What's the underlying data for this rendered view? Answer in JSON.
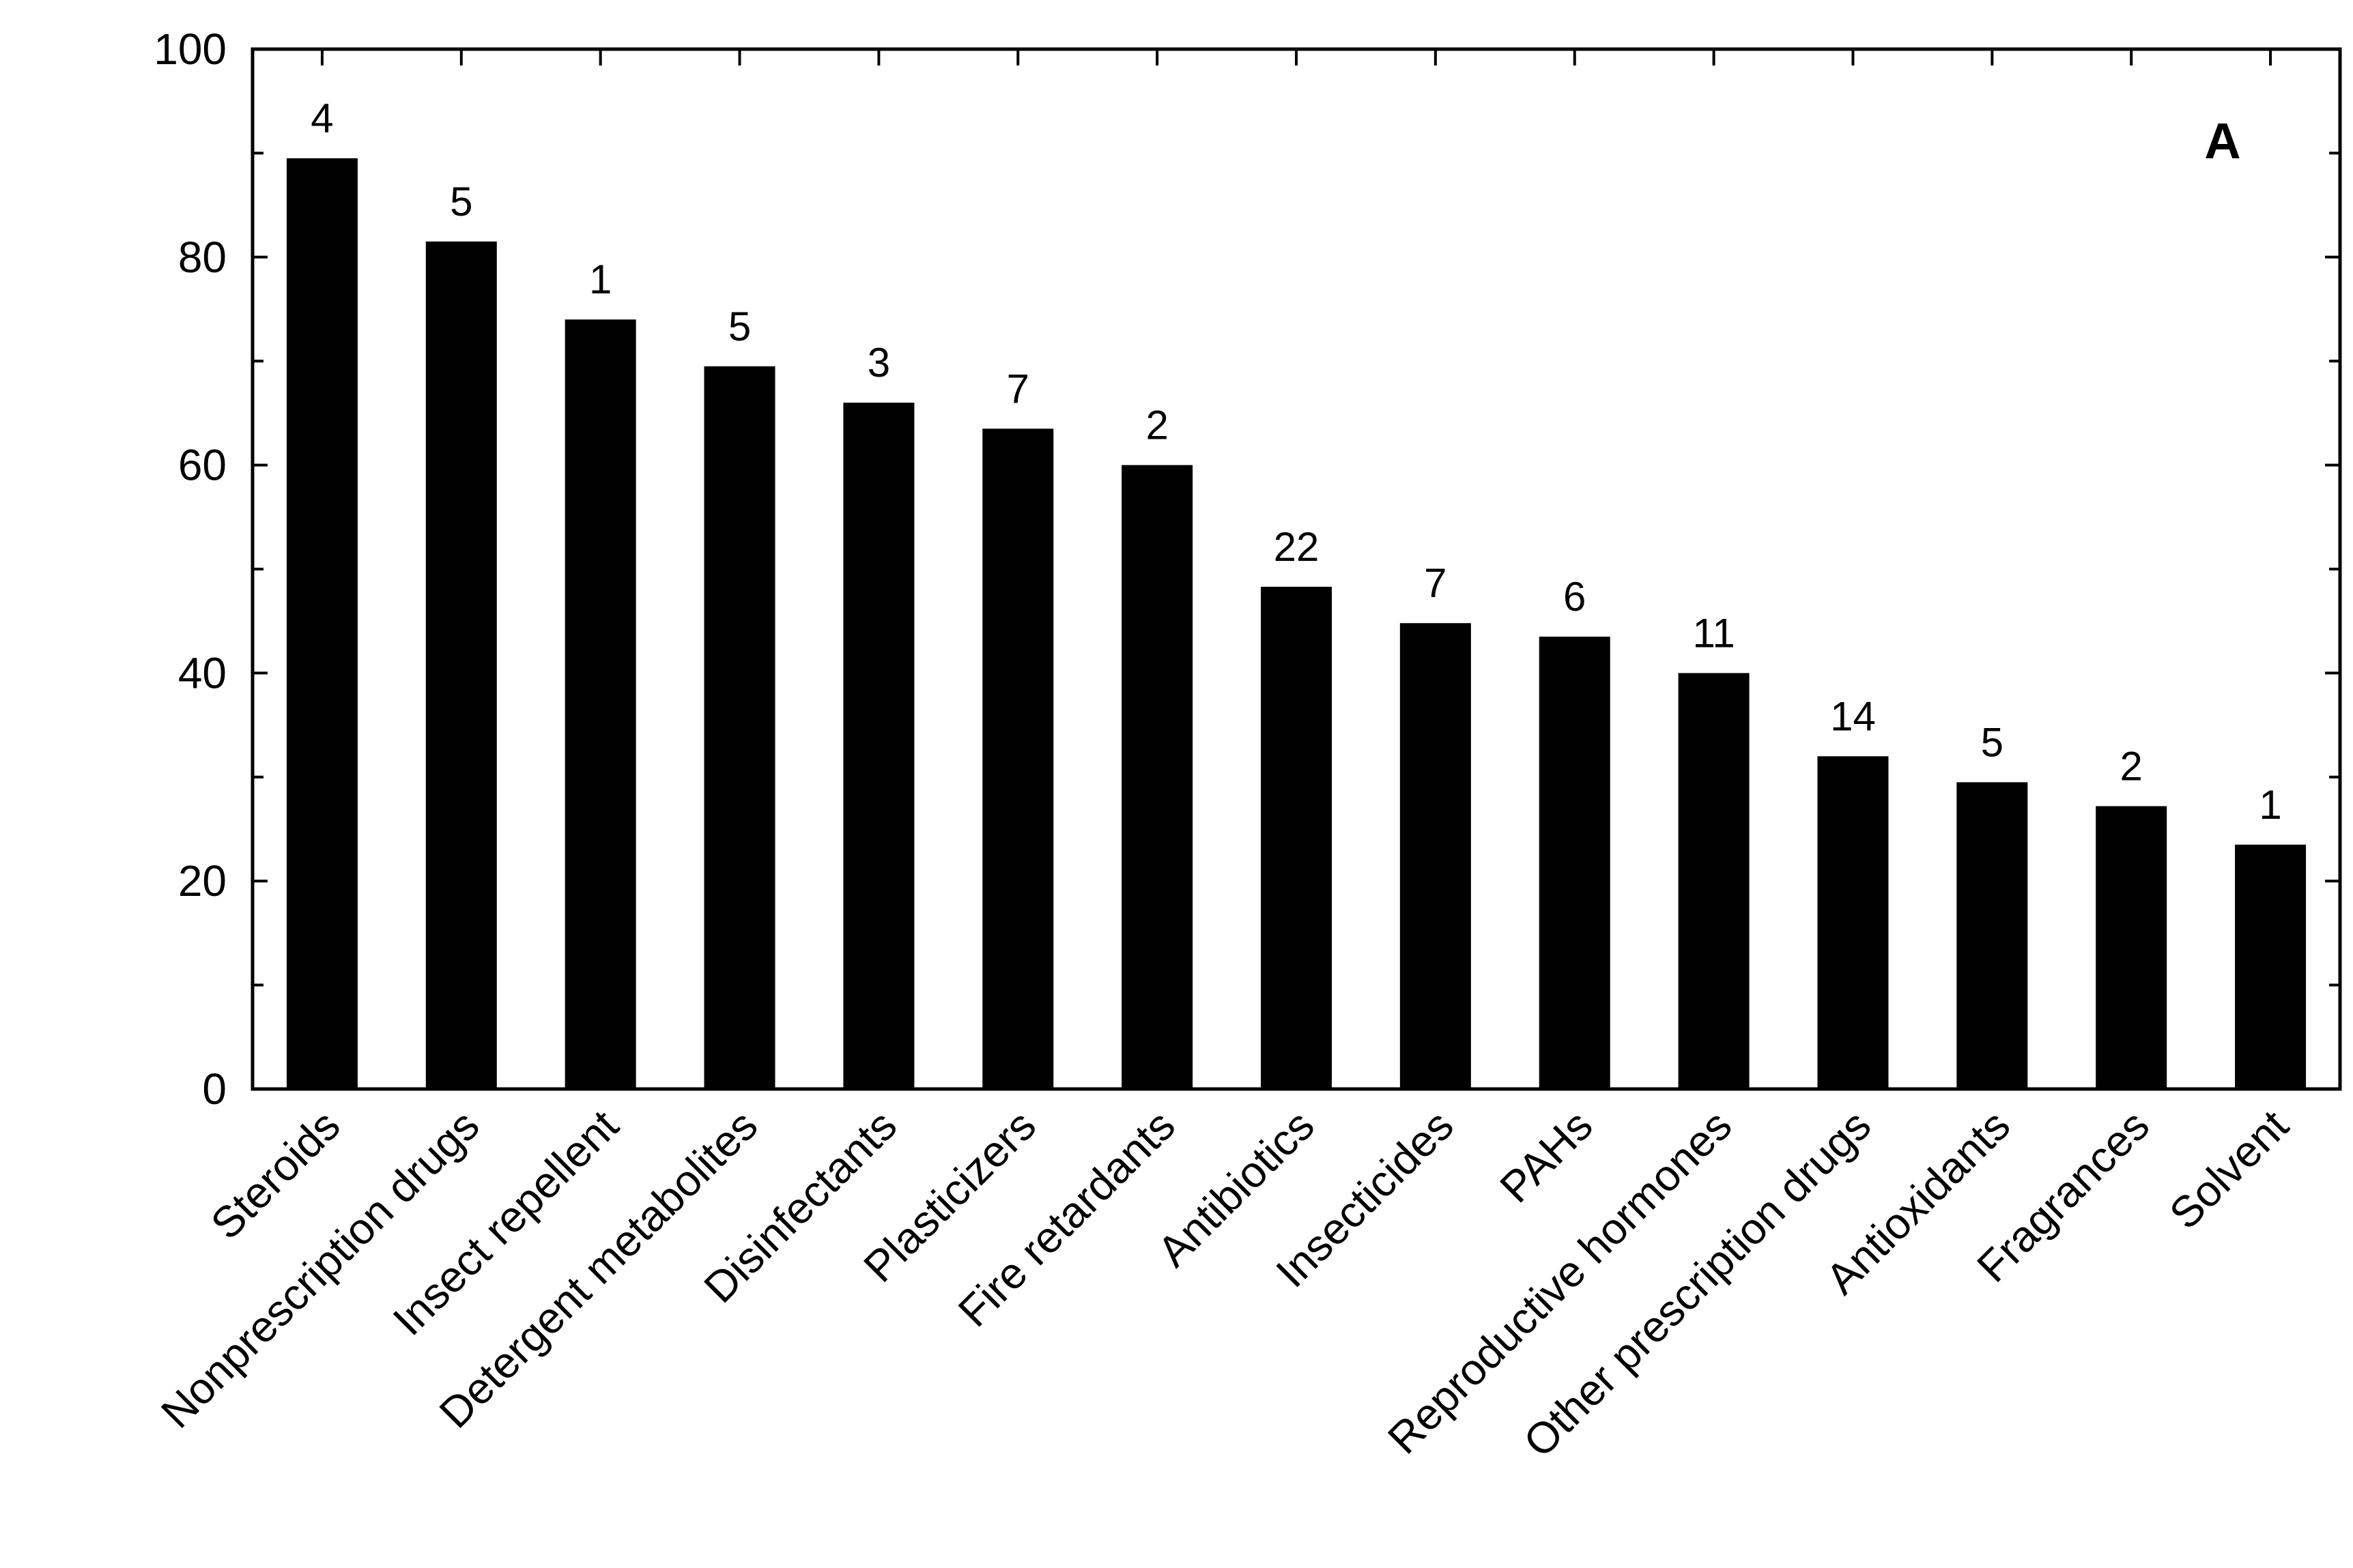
{
  "chart_data": {
    "type": "bar",
    "panel_label": "A",
    "categories": [
      "Steroids",
      "Nonprescription drugs",
      "Insect repellent",
      "Detergent metabolites",
      "Disinfectants",
      "Plasticizers",
      "Fire retardants",
      "Antibiotics",
      "Insecticides",
      "PAHs",
      "Reproductive hormones",
      "Other prescription drugs",
      "Antioxidants",
      "Fragrances",
      "Solvent"
    ],
    "values": [
      89.5,
      81.5,
      74,
      69.5,
      66,
      63.5,
      60,
      48.3,
      44.8,
      43.5,
      40,
      32,
      29.5,
      27.2,
      23.5
    ],
    "data_labels": [
      "4",
      "5",
      "1",
      "5",
      "3",
      "7",
      "2",
      "22",
      "7",
      "6",
      "11",
      "14",
      "5",
      "2",
      "1"
    ],
    "yticks": [
      0,
      20,
      40,
      60,
      80,
      100
    ],
    "ytick_labels": [
      "0",
      "20",
      "40",
      "60",
      "80",
      "100"
    ],
    "ylim": [
      0,
      100
    ],
    "xlabel": "",
    "ylabel": "",
    "grid": false,
    "bar_color": "#000000"
  }
}
